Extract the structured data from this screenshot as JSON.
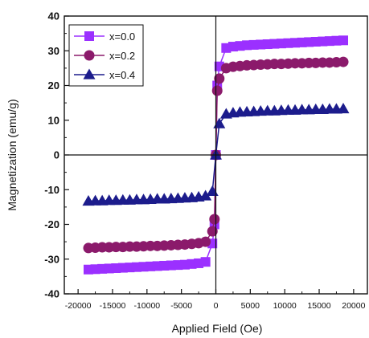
{
  "chart_data": {
    "type": "scatter",
    "title": "",
    "xlabel": "Applied Field (Oe)",
    "ylabel": "Magnetization (emu/g)",
    "xlim": [
      -22000,
      22000
    ],
    "ylim": [
      -40,
      40
    ],
    "xticks": [
      -20000,
      -15000,
      -10000,
      -5000,
      0,
      5000,
      10000,
      15000,
      20000
    ],
    "xtick_labels": [
      "-20000",
      "-15000",
      "-10000",
      "-5000",
      "0",
      "5000",
      "10000",
      "15000",
      "20000"
    ],
    "yticks": [
      -40,
      -30,
      -20,
      -10,
      0,
      10,
      20,
      30,
      40
    ],
    "ytick_labels": [
      "-40",
      "-30",
      "-20",
      "-10",
      "0",
      "10",
      "20",
      "30",
      "40"
    ],
    "grid": false,
    "legend_position": "top-left",
    "series": [
      {
        "name": "x=0.0",
        "color": "#9b30ff",
        "marker": "square",
        "x": [
          -18500,
          -17500,
          -16500,
          -15500,
          -14500,
          -13500,
          -12500,
          -11500,
          -10500,
          -9500,
          -8500,
          -7500,
          -6500,
          -5500,
          -4500,
          -3500,
          -2500,
          -1500,
          -500,
          -200,
          0,
          200,
          500,
          1500,
          2500,
          3500,
          4500,
          5500,
          6500,
          7500,
          8500,
          9500,
          10500,
          11500,
          12500,
          13500,
          14500,
          15500,
          16500,
          17500,
          18500
        ],
        "y": [
          -33.0,
          -32.9,
          -32.8,
          -32.7,
          -32.6,
          -32.5,
          -32.4,
          -32.3,
          -32.2,
          -32.1,
          -32.0,
          -31.9,
          -31.8,
          -31.7,
          -31.6,
          -31.4,
          -31.2,
          -30.8,
          -25.5,
          -20.0,
          0,
          20.0,
          25.5,
          30.8,
          31.2,
          31.4,
          31.6,
          31.7,
          31.8,
          31.9,
          32.0,
          32.1,
          32.2,
          32.3,
          32.4,
          32.5,
          32.6,
          32.7,
          32.8,
          32.9,
          33.0
        ]
      },
      {
        "name": "x=0.2",
        "color": "#8b1a6b",
        "marker": "circle",
        "x": [
          -18500,
          -17500,
          -16500,
          -15500,
          -14500,
          -13500,
          -12500,
          -11500,
          -10500,
          -9500,
          -8500,
          -7500,
          -6500,
          -5500,
          -4500,
          -3500,
          -2500,
          -1500,
          -500,
          -200,
          0,
          200,
          500,
          1500,
          2500,
          3500,
          4500,
          5500,
          6500,
          7500,
          8500,
          9500,
          10500,
          11500,
          12500,
          13500,
          14500,
          15500,
          16500,
          17500,
          18500
        ],
        "y": [
          -26.8,
          -26.7,
          -26.6,
          -26.6,
          -26.5,
          -26.5,
          -26.4,
          -26.4,
          -26.3,
          -26.2,
          -26.2,
          -26.1,
          -26.0,
          -25.9,
          -25.8,
          -25.6,
          -25.4,
          -25.0,
          -22.0,
          -18.5,
          0,
          18.5,
          22.0,
          25.0,
          25.4,
          25.6,
          25.8,
          25.9,
          26.0,
          26.1,
          26.2,
          26.2,
          26.3,
          26.4,
          26.4,
          26.5,
          26.5,
          26.6,
          26.6,
          26.7,
          26.8
        ]
      },
      {
        "name": "x=0.4",
        "color": "#1c1c8c",
        "marker": "triangle",
        "x": [
          -18500,
          -17500,
          -16500,
          -15500,
          -14500,
          -13500,
          -12500,
          -11500,
          -10500,
          -9500,
          -8500,
          -7500,
          -6500,
          -5500,
          -4500,
          -3500,
          -2500,
          -1500,
          -500,
          0,
          500,
          1500,
          2500,
          3500,
          4500,
          5500,
          6500,
          7500,
          8500,
          9500,
          10500,
          11500,
          12500,
          13500,
          14500,
          15500,
          16500,
          17500,
          18500
        ],
        "y": [
          -13.3,
          -13.2,
          -13.2,
          -13.1,
          -13.1,
          -13.0,
          -13.0,
          -12.9,
          -12.9,
          -12.8,
          -12.7,
          -12.7,
          -12.6,
          -12.5,
          -12.4,
          -12.3,
          -12.1,
          -11.8,
          -10.5,
          0,
          9.0,
          11.8,
          12.1,
          12.3,
          12.4,
          12.5,
          12.6,
          12.7,
          12.7,
          12.8,
          12.9,
          12.9,
          13.0,
          13.0,
          13.1,
          13.1,
          13.2,
          13.2,
          13.3
        ]
      }
    ]
  }
}
